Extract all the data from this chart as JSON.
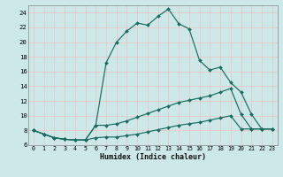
{
  "xlabel": "Humidex (Indice chaleur)",
  "bg_color": "#cce8e8",
  "grid_color": "#e8c8c8",
  "line_color": "#1a6b60",
  "xlim": [
    -0.5,
    23.5
  ],
  "ylim": [
    6,
    25
  ],
  "yticks": [
    6,
    8,
    10,
    12,
    14,
    16,
    18,
    20,
    22,
    24
  ],
  "xticks": [
    0,
    1,
    2,
    3,
    4,
    5,
    6,
    7,
    8,
    9,
    10,
    11,
    12,
    13,
    14,
    15,
    16,
    17,
    18,
    19,
    20,
    21,
    22,
    23
  ],
  "series1_x": [
    0,
    1,
    2,
    3,
    4,
    5,
    6,
    7,
    8,
    9,
    10,
    11,
    12,
    13,
    14,
    15,
    16,
    17,
    18,
    19,
    20,
    21,
    22,
    23
  ],
  "series1_y": [
    8.0,
    7.5,
    7.0,
    6.8,
    6.7,
    6.7,
    8.7,
    17.2,
    20.0,
    21.5,
    22.6,
    22.3,
    23.5,
    24.5,
    22.5,
    21.8,
    17.5,
    16.2,
    16.6,
    14.5,
    13.2,
    10.2,
    8.2,
    8.2
  ],
  "series2_x": [
    0,
    1,
    2,
    3,
    4,
    5,
    6,
    7,
    8,
    9,
    10,
    11,
    12,
    13,
    14,
    15,
    16,
    17,
    18,
    19,
    20,
    21,
    22,
    23
  ],
  "series2_y": [
    8.0,
    7.5,
    7.0,
    6.8,
    6.7,
    6.7,
    8.7,
    8.7,
    8.9,
    9.3,
    9.8,
    10.3,
    10.8,
    11.3,
    11.8,
    12.1,
    12.4,
    12.7,
    13.2,
    13.7,
    10.2,
    8.2,
    8.2,
    8.2
  ],
  "series3_x": [
    0,
    1,
    2,
    3,
    4,
    5,
    6,
    7,
    8,
    9,
    10,
    11,
    12,
    13,
    14,
    15,
    16,
    17,
    18,
    19,
    20,
    21,
    22,
    23
  ],
  "series3_y": [
    8.0,
    7.5,
    7.0,
    6.8,
    6.7,
    6.7,
    7.0,
    7.1,
    7.1,
    7.3,
    7.5,
    7.8,
    8.1,
    8.4,
    8.7,
    8.9,
    9.1,
    9.4,
    9.7,
    10.0,
    8.2,
    8.2,
    8.2,
    8.2
  ]
}
